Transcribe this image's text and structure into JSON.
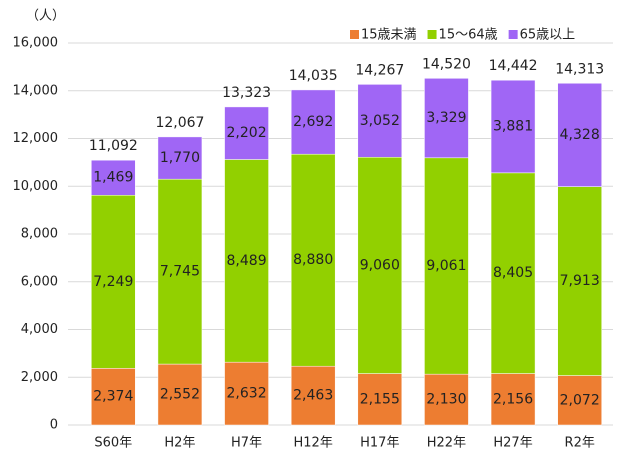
{
  "chart_data": {
    "type": "stacked_bar",
    "unit_label": "（人）",
    "categories": [
      "S60年",
      "H2年",
      "H7年",
      "H12年",
      "H17年",
      "H22年",
      "H27年",
      "R2年"
    ],
    "series": [
      {
        "name": "15歳未満",
        "color": "#ed7d31",
        "values": [
          2374,
          2552,
          2632,
          2463,
          2155,
          2130,
          2156,
          2072
        ],
        "value_labels": [
          "2,374",
          "2,552",
          "2,632",
          "2,463",
          "2,155",
          "2,130",
          "2,156",
          "2,072"
        ]
      },
      {
        "name": "15～64歳",
        "color": "#92d000",
        "values": [
          7249,
          7745,
          8489,
          8880,
          9060,
          9061,
          8405,
          7913
        ],
        "value_labels": [
          "7,249",
          "7,745",
          "8,489",
          "8,880",
          "9,060",
          "9,061",
          "8,405",
          "7,913"
        ]
      },
      {
        "name": "65歳以上",
        "color": "#a066f5",
        "values": [
          1469,
          1770,
          2202,
          2692,
          3052,
          3329,
          3881,
          4328
        ],
        "value_labels": [
          "1,469",
          "1,770",
          "2,202",
          "2,692",
          "3,052",
          "3,329",
          "3,881",
          "4,328"
        ]
      }
    ],
    "totals": [
      11092,
      12067,
      13323,
      14035,
      14267,
      14520,
      14442,
      14313
    ],
    "total_labels": [
      "11,092",
      "12,067",
      "13,323",
      "14,035",
      "14,267",
      "14,520",
      "14,442",
      "14,313"
    ],
    "ylim": [
      0,
      16000
    ],
    "yticks": [
      0,
      {
        "value": 2000,
        "label": "2,000"
      },
      {
        "value": 4000,
        "label": "4,000"
      },
      {
        "value": 6000,
        "label": "6,000"
      },
      {
        "value": 8000,
        "label": "8,000"
      },
      {
        "value": 10000,
        "label": "10,000"
      },
      {
        "value": 12000,
        "label": "12,000"
      },
      {
        "value": 14000,
        "label": "14,000"
      },
      {
        "value": 16000,
        "label": "16,000"
      }
    ],
    "grid": true,
    "legend": "top-right"
  }
}
